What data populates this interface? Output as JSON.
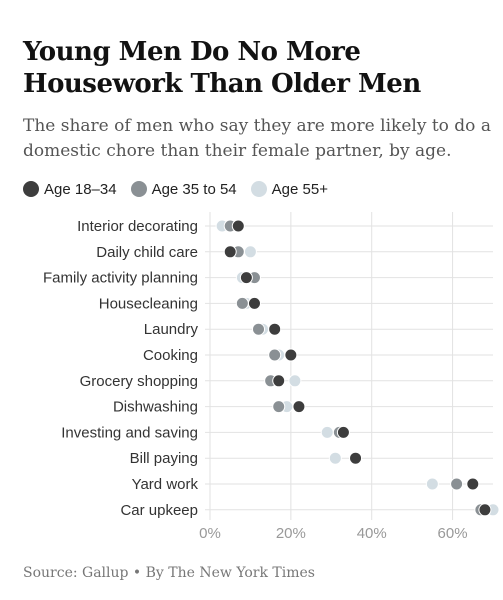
{
  "title": "Young Men Do No More Housework Than Older Men",
  "subtitle": "The share of men who say they are more likely to do a domestic chore than their female partner, by age.",
  "source": "Source: Gallup • By The New York Times",
  "colors": {
    "age_18_34": "#3d3d3d",
    "age_35_54": "#8a9094",
    "age_55_plus": "#d3dde3",
    "grid": "#e2e2e2",
    "tick": "#999999"
  },
  "chart_data": {
    "type": "scatter",
    "title": "Young Men Do No More Housework Than Older Men",
    "subtitle": "The share of men who say they are more likely to do a domestic chore than their female partner, by age.",
    "xlabel": "",
    "ylabel": "",
    "xlim": [
      0,
      70
    ],
    "x_ticks": [
      0,
      20,
      40,
      60
    ],
    "x_tick_labels": [
      "0%",
      "20%",
      "40%",
      "60%"
    ],
    "grid": true,
    "legend_position": "top-left",
    "categories": [
      "Interior decorating",
      "Daily child care",
      "Family activity planning",
      "Housecleaning",
      "Laundry",
      "Cooking",
      "Grocery shopping",
      "Dishwashing",
      "Investing and saving",
      "Bill paying",
      "Yard work",
      "Car upkeep"
    ],
    "series": [
      {
        "name": "Age 18–34",
        "values": [
          7,
          5,
          9,
          11,
          16,
          20,
          17,
          22,
          33,
          36,
          65,
          68
        ]
      },
      {
        "name": "Age 35 to 54",
        "values": [
          5,
          7,
          11,
          8,
          12,
          16,
          15,
          17,
          32,
          36,
          61,
          67
        ]
      },
      {
        "name": "Age 55+",
        "values": [
          3,
          10,
          8,
          9,
          13,
          17,
          21,
          19,
          29,
          31,
          55,
          70
        ]
      }
    ]
  }
}
